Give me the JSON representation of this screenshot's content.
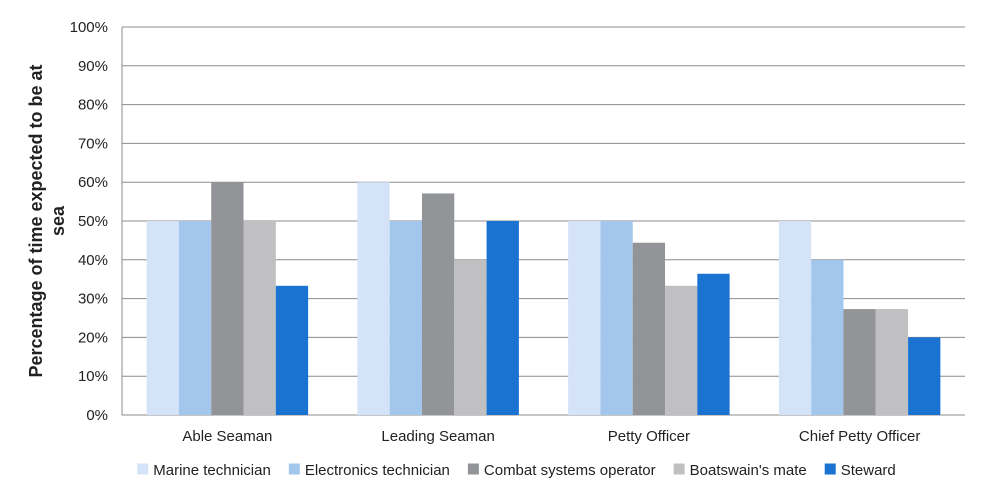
{
  "chart_data": {
    "type": "bar",
    "ylabel_lines": [
      "Percentage of time expected to be at",
      "sea"
    ],
    "xlabel": "",
    "ylim": [
      0,
      100
    ],
    "yticks": [
      "0%",
      "10%",
      "20%",
      "30%",
      "40%",
      "50%",
      "60%",
      "70%",
      "80%",
      "90%",
      "100%"
    ],
    "categories": [
      "Able Seaman",
      "Leading Seaman",
      "Petty Officer",
      "Chief Petty Officer"
    ],
    "series": [
      {
        "name": "Marine technician",
        "color": "#d4e3f7",
        "values": [
          50,
          60,
          50,
          50
        ]
      },
      {
        "name": "Electronics technician",
        "color": "#a2c6ec",
        "values": [
          50,
          50,
          50,
          40
        ]
      },
      {
        "name": "Combat systems operator",
        "color": "#929497",
        "values": [
          60,
          57.1,
          44.4,
          27.3
        ]
      },
      {
        "name": "Boatswain's mate",
        "color": "#c0c0c2",
        "values": [
          50,
          40,
          33.3,
          27.3
        ]
      },
      {
        "name": "Steward",
        "color": "#1a72d1",
        "values": [
          33.3,
          50,
          36.4,
          20
        ]
      }
    ],
    "grid": true,
    "legend_position": "bottom"
  }
}
